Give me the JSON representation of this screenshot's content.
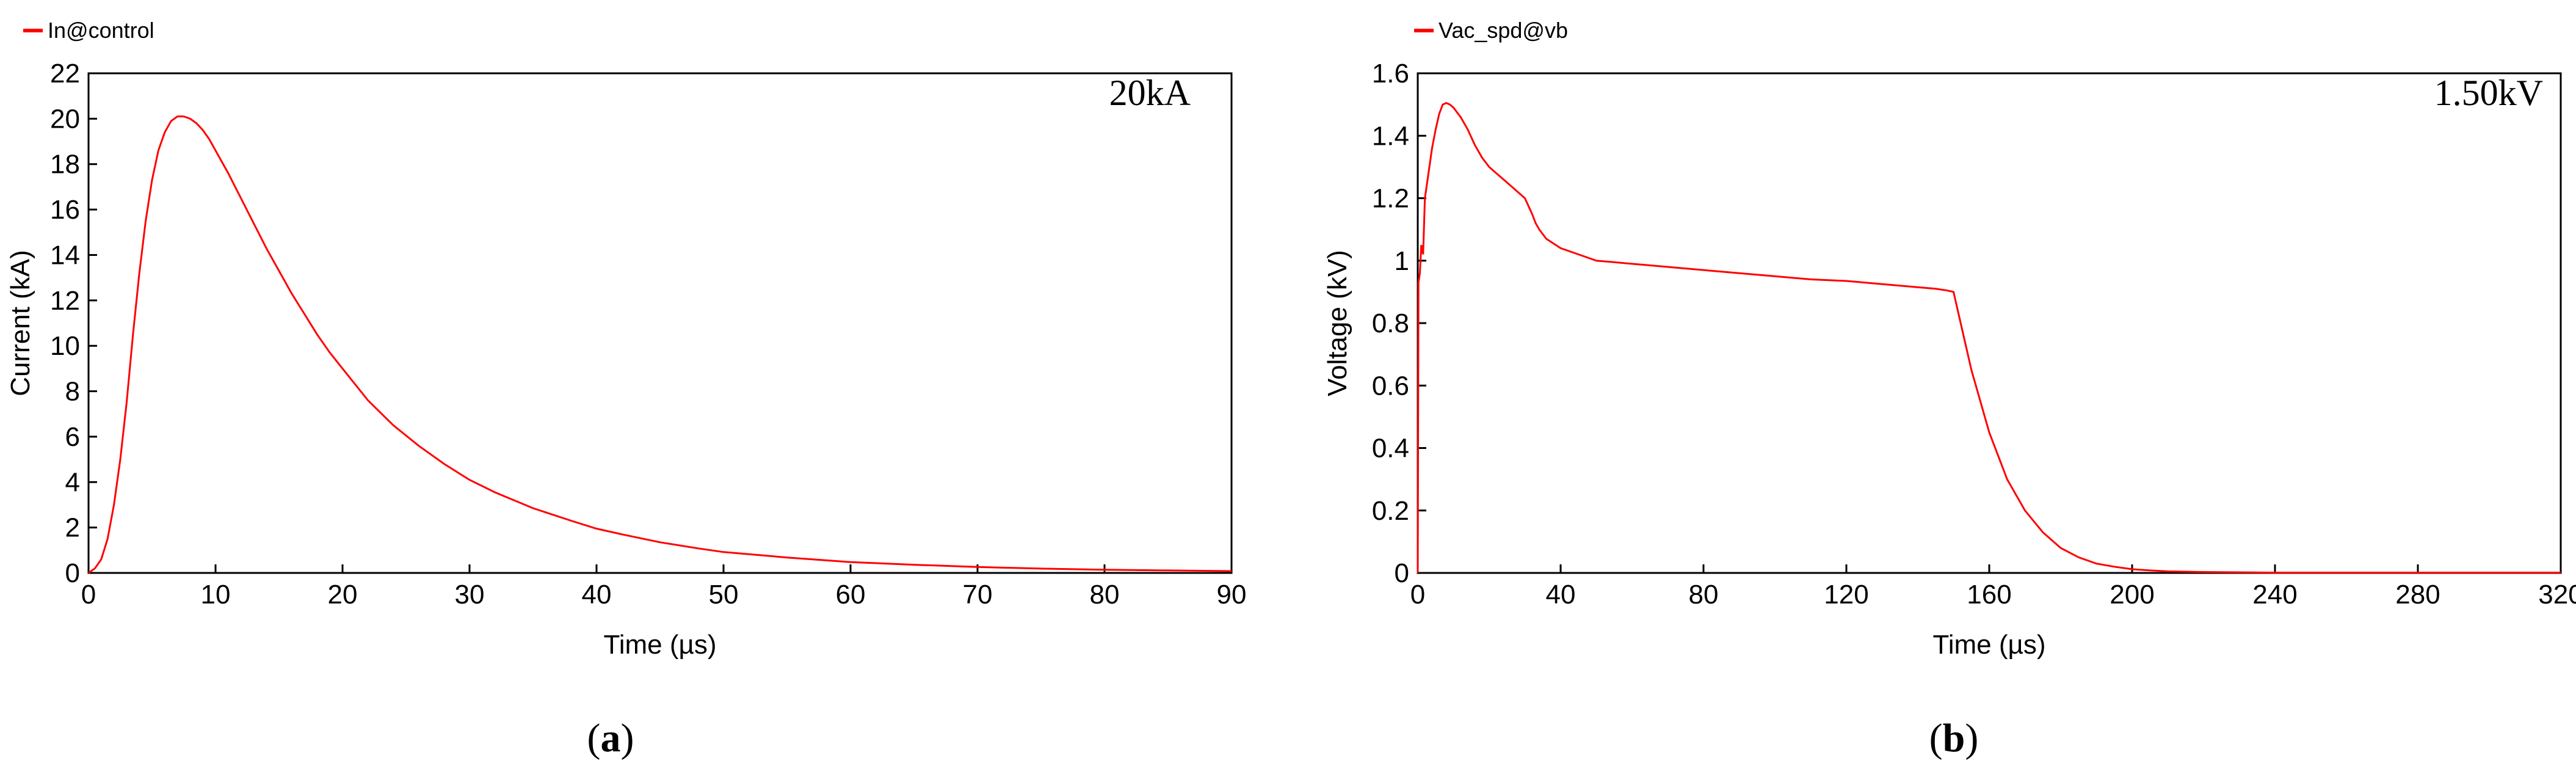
{
  "panels": [
    {
      "caption_letter": "a",
      "chart_data": {
        "type": "line",
        "legend": {
          "label": "In@control",
          "placement": "top-left"
        },
        "annotation": "20kA",
        "xlabel": "Time (µs)",
        "ylabel": "Current (kA)",
        "xlim": [
          0,
          90
        ],
        "ylim": [
          0,
          22
        ],
        "x_ticks": [
          "0",
          "10",
          "20",
          "30",
          "40",
          "50",
          "60",
          "70",
          "80",
          "90"
        ],
        "y_ticks": [
          "0",
          "2",
          "4",
          "6",
          "8",
          "10",
          "12",
          "14",
          "16",
          "18",
          "20",
          "22"
        ],
        "grid": false,
        "series": [
          {
            "name": "In@control",
            "color": "#ff0000",
            "x": [
              0,
              0.5,
              1,
              1.5,
              2,
              2.5,
              3,
              3.5,
              4,
              4.5,
              5,
              5.5,
              6,
              6.5,
              7,
              7.5,
              8,
              8.5,
              9,
              9.5,
              10,
              11,
              12,
              13,
              14,
              15,
              16,
              17,
              18,
              19,
              20,
              22,
              24,
              26,
              28,
              30,
              32,
              35,
              38,
              40,
              42,
              45,
              48,
              50,
              55,
              60,
              65,
              70,
              75,
              80,
              85,
              90
            ],
            "y": [
              0,
              0.2,
              0.6,
              1.5,
              3,
              5,
              7.5,
              10.5,
              13.2,
              15.5,
              17.3,
              18.6,
              19.4,
              19.9,
              20.1,
              20.1,
              20.0,
              19.8,
              19.5,
              19.1,
              18.6,
              17.6,
              16.5,
              15.4,
              14.3,
              13.3,
              12.3,
              11.4,
              10.5,
              9.7,
              9.0,
              7.6,
              6.5,
              5.6,
              4.8,
              4.1,
              3.55,
              2.85,
              2.3,
              1.95,
              1.7,
              1.35,
              1.08,
              0.92,
              0.68,
              0.48,
              0.36,
              0.26,
              0.19,
              0.14,
              0.11,
              0.08
            ]
          }
        ]
      }
    },
    {
      "caption_letter": "b",
      "chart_data": {
        "type": "line",
        "legend": {
          "label": "Vac_spd@vb",
          "placement": "top-left"
        },
        "annotation": "1.50kV",
        "xlabel": "Time (µs)",
        "ylabel": "Voltage (kV)",
        "xlim": [
          0,
          320
        ],
        "ylim": [
          0,
          1.6
        ],
        "x_ticks": [
          "0",
          "40",
          "80",
          "120",
          "160",
          "200",
          "240",
          "280",
          "320"
        ],
        "y_ticks": [
          "0",
          "0.2",
          "0.4",
          "0.6",
          "0.8",
          "1",
          "1.2",
          "1.4",
          "1.6"
        ],
        "grid": false,
        "series": [
          {
            "name": "Vac_spd@vb",
            "color": "#ff0000",
            "x": [
              0,
              0.2,
              0.6,
              1,
              1.5,
              2,
              3,
              4,
              5,
              6,
              7,
              8,
              9,
              10,
              12,
              14,
              16,
              18,
              20,
              22,
              25,
              28,
              30,
              32,
              33,
              34,
              36,
              38,
              40,
              45,
              50,
              55,
              60,
              70,
              80,
              90,
              100,
              110,
              120,
              130,
              140,
              145,
              148,
              150,
              152,
              155,
              160,
              165,
              170,
              175,
              180,
              185,
              190,
              195,
              200,
              205,
              210,
              220,
              230,
              240,
              260,
              280,
              300,
              320
            ],
            "y": [
              0,
              0.93,
              0.96,
              1.05,
              1.02,
              1.2,
              1.28,
              1.36,
              1.42,
              1.47,
              1.5,
              1.505,
              1.5,
              1.49,
              1.46,
              1.42,
              1.37,
              1.33,
              1.3,
              1.28,
              1.25,
              1.22,
              1.2,
              1.15,
              1.12,
              1.1,
              1.07,
              1.055,
              1.04,
              1.02,
              1.0,
              0.995,
              0.99,
              0.98,
              0.97,
              0.96,
              0.95,
              0.94,
              0.935,
              0.925,
              0.915,
              0.91,
              0.905,
              0.9,
              0.8,
              0.65,
              0.45,
              0.3,
              0.2,
              0.13,
              0.08,
              0.05,
              0.03,
              0.02,
              0.012,
              0.008,
              0.005,
              0.003,
              0.002,
              0.001,
              0.001,
              0.001,
              0.001,
              0.001
            ]
          }
        ]
      }
    }
  ]
}
